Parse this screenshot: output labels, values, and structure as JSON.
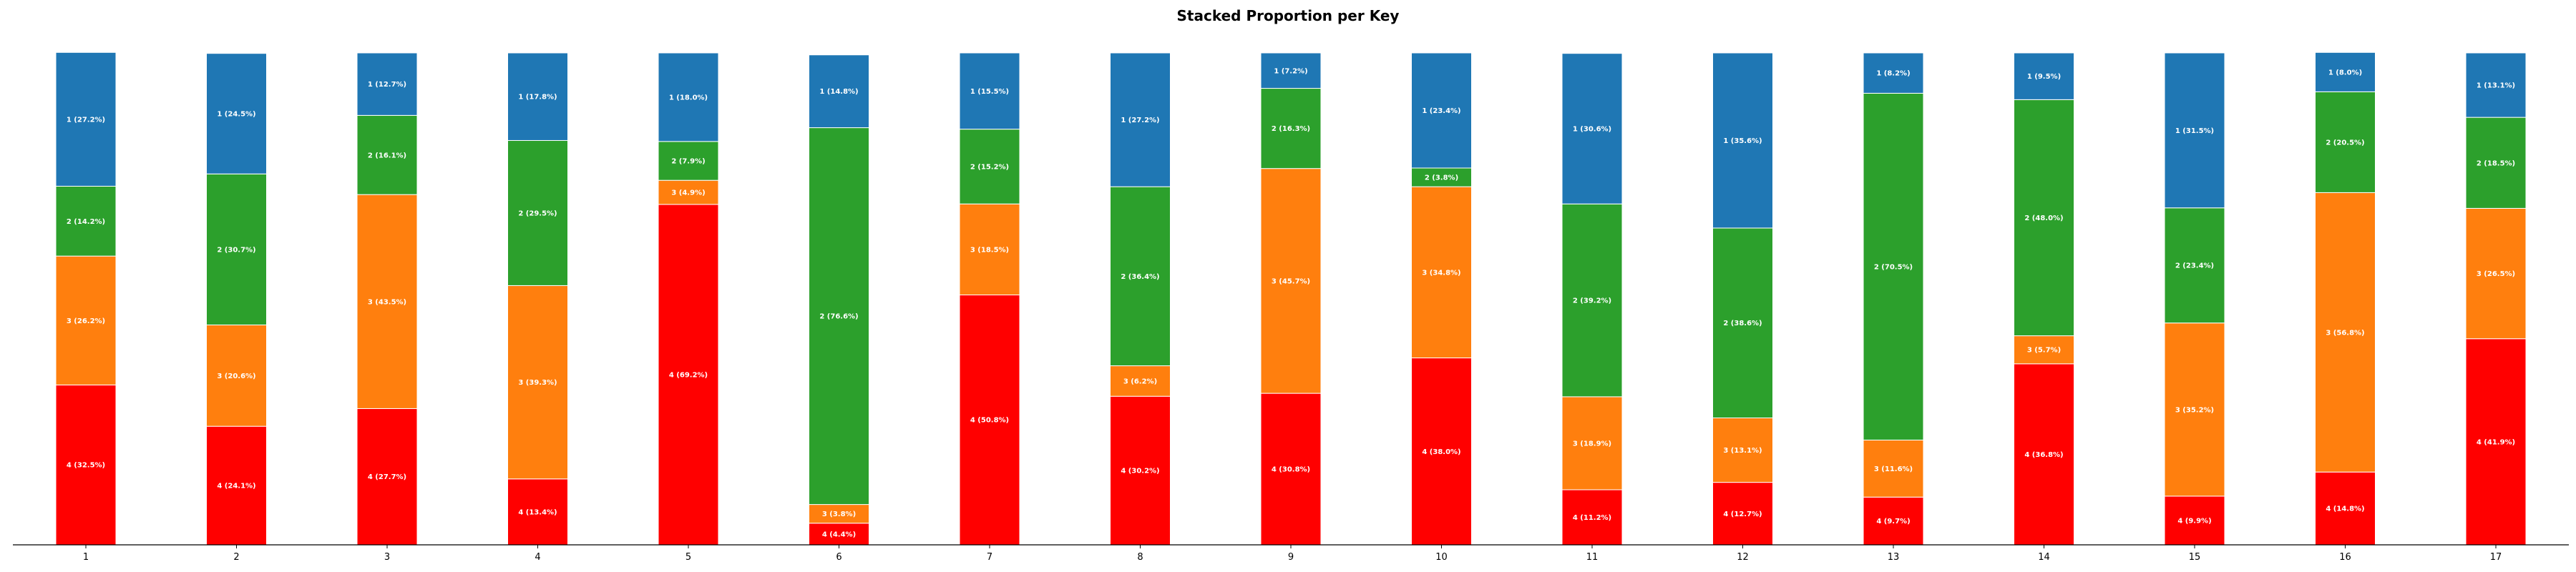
{
  "chart_data": {
    "type": "bar",
    "stacked": true,
    "title": "Stacked Proportion per Key",
    "xlabel": "",
    "ylabel": "",
    "ylim": [
      0,
      100
    ],
    "categories": [
      "1",
      "2",
      "3",
      "4",
      "5",
      "6",
      "7",
      "8",
      "9",
      "10",
      "11",
      "12",
      "13",
      "14",
      "15",
      "16",
      "17"
    ],
    "series": [
      {
        "name": "4",
        "color": "#ff0000",
        "values": [
          32.5,
          24.1,
          27.7,
          13.4,
          69.2,
          4.4,
          50.8,
          30.2,
          30.8,
          38.0,
          11.2,
          12.7,
          9.7,
          36.8,
          9.9,
          14.8,
          41.9
        ]
      },
      {
        "name": "3",
        "color": "#ff7f0e",
        "values": [
          26.2,
          20.6,
          43.5,
          39.3,
          4.9,
          3.8,
          18.5,
          6.2,
          45.7,
          34.8,
          18.9,
          13.1,
          11.6,
          5.7,
          35.2,
          56.8,
          26.5
        ]
      },
      {
        "name": "2",
        "color": "#2ca02c",
        "values": [
          14.2,
          30.7,
          16.1,
          29.5,
          7.9,
          76.6,
          15.2,
          36.4,
          16.3,
          3.8,
          39.2,
          38.6,
          70.5,
          48.0,
          23.4,
          20.5,
          18.5
        ]
      },
      {
        "name": "1",
        "color": "#1f77b4",
        "values": [
          27.2,
          24.5,
          12.7,
          17.8,
          18.0,
          14.8,
          15.5,
          27.2,
          7.2,
          23.4,
          30.6,
          35.6,
          8.2,
          9.5,
          31.5,
          8.0,
          13.1
        ]
      }
    ],
    "grid": false,
    "legend": "none"
  }
}
